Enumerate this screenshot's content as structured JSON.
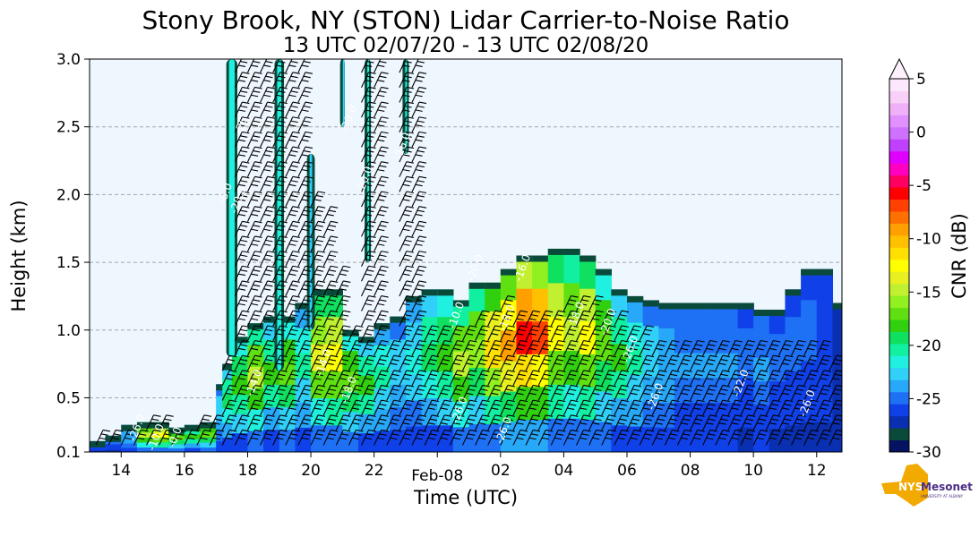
{
  "chart_data": {
    "type": "heatmap",
    "title": "Stony Brook, NY (STON) Lidar Carrier-to-Noise Ratio",
    "subtitle": "13 UTC 02/07/20 - 13 UTC 02/08/20",
    "xlabel": "Time (UTC)",
    "ylabel": "Height (km)",
    "xlim": [
      13.0,
      36.8
    ],
    "ylim": [
      0.1,
      3.0
    ],
    "x_ticks": [
      {
        "value": 14,
        "label": "14"
      },
      {
        "value": 16,
        "label": "16"
      },
      {
        "value": 18,
        "label": "18"
      },
      {
        "value": 20,
        "label": "20"
      },
      {
        "value": 22,
        "label": "22"
      },
      {
        "value": 24,
        "label": "Feb-08"
      },
      {
        "value": 26,
        "label": "02"
      },
      {
        "value": 28,
        "label": "04"
      },
      {
        "value": 30,
        "label": "06"
      },
      {
        "value": 32,
        "label": "08"
      },
      {
        "value": 34,
        "label": "10"
      },
      {
        "value": 36,
        "label": "12"
      }
    ],
    "y_ticks": [
      {
        "value": 0.1,
        "label": "0.1"
      },
      {
        "value": 0.5,
        "label": "0.5"
      },
      {
        "value": 1.0,
        "label": "1.0"
      },
      {
        "value": 1.5,
        "label": "1.5"
      },
      {
        "value": 2.0,
        "label": "2.0"
      },
      {
        "value": 2.5,
        "label": "2.5"
      },
      {
        "value": 3.0,
        "label": "3.0"
      }
    ],
    "grid": "horizontal dashed",
    "colorbar": {
      "label": "CNR (dB)",
      "range": [
        -30,
        5
      ],
      "ticks": [
        {
          "value": 5,
          "label": "5"
        },
        {
          "value": 0,
          "label": "0"
        },
        {
          "value": -5,
          "label": "-5"
        },
        {
          "value": -10,
          "label": "-10"
        },
        {
          "value": -15,
          "label": "-15"
        },
        {
          "value": -20,
          "label": "-20"
        },
        {
          "value": -25,
          "label": "-25"
        },
        {
          "value": -30,
          "label": "-30"
        }
      ],
      "colors": [
        "#051260",
        "#0a4a3a",
        "#0a2fb0",
        "#1040e8",
        "#1e70f5",
        "#28a8f8",
        "#30d0f8",
        "#20f0e0",
        "#10f0a0",
        "#10e060",
        "#30d010",
        "#60e010",
        "#90f020",
        "#c0f030",
        "#e8f020",
        "#ffff00",
        "#ffe000",
        "#ffc000",
        "#ffa000",
        "#ff7000",
        "#ff4000",
        "#ff0000",
        "#ff0060",
        "#ff00c0",
        "#e000ff",
        "#c040ff",
        "#d070ff",
        "#e090ff",
        "#f0b0f8",
        "#f8d0f8",
        "#fce8fc"
      ]
    },
    "background_color": "#eef6fe",
    "profile": {
      "x": [
        13.0,
        13.5,
        14.0,
        14.5,
        15.0,
        15.5,
        16.0,
        16.5,
        17.0,
        17.2,
        17.5,
        18.0,
        18.5,
        19.0,
        19.5,
        20.0,
        20.5,
        21.0,
        21.5,
        22.0,
        22.5,
        23.0,
        23.5,
        24.0,
        24.5,
        25.0,
        25.5,
        26.0,
        26.5,
        27.0,
        27.5,
        28.0,
        28.5,
        29.0,
        29.5,
        30.0,
        30.5,
        31.0,
        31.5,
        32.0,
        32.5,
        33.0,
        33.5,
        34.0,
        34.5,
        35.0,
        35.5,
        36.0,
        36.5,
        36.8
      ],
      "top": [
        0.18,
        0.18,
        0.22,
        0.3,
        0.32,
        0.28,
        0.26,
        0.3,
        0.32,
        0.6,
        0.75,
        0.95,
        1.05,
        1.1,
        0.95,
        1.2,
        1.3,
        1.0,
        0.95,
        0.9,
        1.05,
        1.1,
        1.25,
        1.3,
        1.22,
        1.2,
        1.35,
        1.35,
        1.45,
        1.55,
        1.5,
        1.6,
        1.55,
        1.45,
        1.3,
        1.25,
        1.22,
        1.2,
        1.2,
        1.2,
        1.2,
        1.18,
        1.2,
        1.15,
        1.1,
        1.15,
        1.3,
        1.45,
        1.15,
        1.2
      ],
      "cnr": [
        -26,
        -25,
        -23,
        -14,
        -12,
        -16,
        -18,
        -16,
        -22,
        -19,
        -17,
        -14,
        -18,
        -16,
        -20,
        -13,
        -12,
        -16,
        -18,
        -20,
        -22,
        -21,
        -19,
        -17,
        -14,
        -15,
        -10,
        -8,
        -4,
        -6,
        -12,
        -14,
        -12,
        -16,
        -18,
        -20,
        -22,
        -23,
        -24,
        -24,
        -24,
        -24,
        -25,
        -24,
        -25,
        -25,
        -25,
        -26,
        -27,
        -27
      ]
    },
    "plumes": [
      {
        "x": 17.5,
        "bottom": 0.8,
        "top": 3.0,
        "width": 0.35,
        "cnr": -26
      },
      {
        "x": 19.0,
        "bottom": 0.7,
        "top": 3.0,
        "width": 0.3,
        "cnr": -26
      },
      {
        "x": 20.0,
        "bottom": 1.0,
        "top": 2.3,
        "width": 0.25,
        "cnr": -27
      },
      {
        "x": 21.0,
        "bottom": 2.5,
        "top": 3.0,
        "width": 0.15,
        "cnr": -27
      },
      {
        "x": 21.8,
        "bottom": 1.5,
        "top": 3.0,
        "width": 0.2,
        "cnr": -26
      },
      {
        "x": 23.0,
        "bottom": 2.3,
        "top": 3.0,
        "width": 0.2,
        "cnr": -26
      }
    ],
    "contour_labels": [
      {
        "x": 15.2,
        "y": 0.2,
        "text": "-10.0"
      },
      {
        "x": 15.8,
        "y": 0.2,
        "text": "-0.0"
      },
      {
        "x": 14.6,
        "y": 0.27,
        "text": "-26.0"
      },
      {
        "x": 17.9,
        "y": 2.5,
        "text": "-26"
      },
      {
        "x": 17.4,
        "y": 2.0,
        "text": "-6.0"
      },
      {
        "x": 17.8,
        "y": 1.95,
        "text": "-20.0"
      },
      {
        "x": 18.3,
        "y": 0.6,
        "text": "-14.0"
      },
      {
        "x": 21.3,
        "y": 2.55,
        "text": "-20.0"
      },
      {
        "x": 21.8,
        "y": 2.1,
        "text": "-20.0"
      },
      {
        "x": 23.0,
        "y": 2.35,
        "text": "-16.0"
      },
      {
        "x": 21.3,
        "y": 0.55,
        "text": "-18.0"
      },
      {
        "x": 20.5,
        "y": 0.75,
        "text": "-14.0"
      },
      {
        "x": 24.8,
        "y": 0.4,
        "text": "-26.0"
      },
      {
        "x": 26.2,
        "y": 0.25,
        "text": "-26.0"
      },
      {
        "x": 25.3,
        "y": 1.45,
        "text": "-20.0"
      },
      {
        "x": 26.8,
        "y": 1.45,
        "text": "-16.0"
      },
      {
        "x": 24.7,
        "y": 1.1,
        "text": "-10.0"
      },
      {
        "x": 26.3,
        "y": 1.08,
        "text": "-18.0"
      },
      {
        "x": 28.5,
        "y": 1.1,
        "text": "-18.0"
      },
      {
        "x": 29.5,
        "y": 1.05,
        "text": "-20.0"
      },
      {
        "x": 30.2,
        "y": 0.85,
        "text": "-26.0"
      },
      {
        "x": 31.0,
        "y": 0.5,
        "text": "-26.0"
      },
      {
        "x": 33.7,
        "y": 0.6,
        "text": "-22.0"
      },
      {
        "x": 35.8,
        "y": 0.45,
        "text": "-26.0"
      }
    ],
    "wind_barbs": {
      "columns": [
        13.2,
        13.6,
        14.0,
        14.4,
        14.8,
        15.2,
        15.6,
        16.0,
        16.4,
        16.8,
        17.2,
        17.6,
        18.0,
        18.4,
        18.8,
        19.2,
        19.6,
        20.0,
        20.4,
        20.8,
        21.2,
        21.6,
        22.0,
        22.4,
        22.8,
        23.2,
        23.6,
        24.0,
        24.4,
        24.8,
        25.2,
        25.6,
        26.0,
        26.4,
        26.8,
        27.2,
        27.6,
        28.0,
        28.4,
        28.8,
        29.2,
        29.6,
        30.0,
        30.4,
        30.8,
        31.2,
        31.6,
        32.0,
        32.4,
        32.8,
        33.2,
        33.6,
        34.0,
        34.4,
        34.8,
        35.2,
        35.6,
        36.0,
        36.4
      ],
      "tops": [
        0.2,
        0.15,
        0.2,
        0.2,
        0.3,
        0.28,
        0.25,
        0.25,
        0.3,
        0.3,
        0.8,
        2.9,
        2.95,
        2.9,
        2.9,
        2.95,
        2.9,
        2.0,
        1.9,
        1.4,
        1.0,
        2.9,
        2.9,
        0.9,
        2.9,
        2.9,
        1.0,
        1.0,
        1.0,
        1.0,
        1.1,
        1.1,
        1.15,
        1.1,
        1.05,
        1.1,
        1.1,
        1.2,
        1.2,
        1.2,
        1.1,
        1.1,
        1.0,
        0.95,
        0.9,
        0.85,
        0.85,
        0.85,
        0.85,
        0.85,
        0.85,
        0.85,
        0.85,
        0.85,
        0.85,
        0.85,
        0.85,
        0.85,
        0.7
      ]
    }
  },
  "logo": {
    "name": "NYS Mesonet",
    "prefix": "NYS",
    "word": "Mesonet",
    "tagline": "UNIVERSITY AT ALBANY"
  }
}
